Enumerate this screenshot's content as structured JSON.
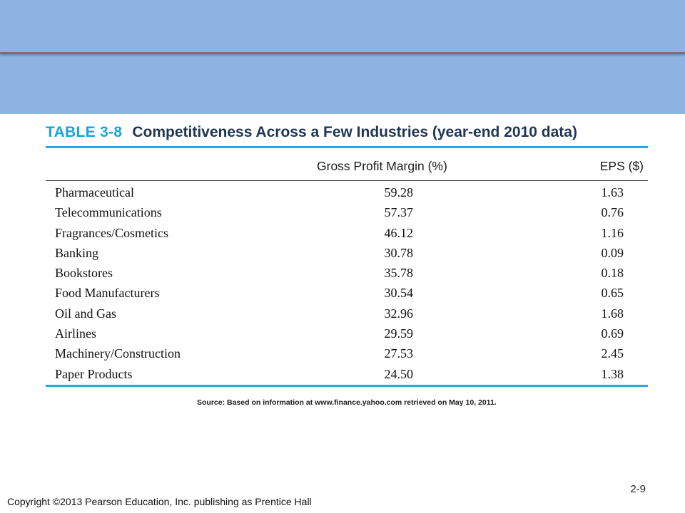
{
  "slide": {
    "background_color": "#ffffff",
    "banner_color": "#8db3e2",
    "banner_rule_color": "#8b6574"
  },
  "table": {
    "number": "TABLE 3-8",
    "title": "Competitiveness Across a Few Industries (year-end 2010 data)",
    "headers": {
      "industry": "",
      "gross_profit_margin": "Gross Profit Margin (%)",
      "eps": "EPS ($)"
    },
    "rows": [
      {
        "industry": "Pharmaceutical",
        "gross_profit_margin": "59.28",
        "eps": "1.63"
      },
      {
        "industry": "Telecommunications",
        "gross_profit_margin": "57.37",
        "eps": "0.76"
      },
      {
        "industry": "Fragrances/Cosmetics",
        "gross_profit_margin": "46.12",
        "eps": "1.16"
      },
      {
        "industry": "Banking",
        "gross_profit_margin": "30.78",
        "eps": "0.09"
      },
      {
        "industry": "Bookstores",
        "gross_profit_margin": "35.78",
        "eps": "0.18"
      },
      {
        "industry": "Food Manufacturers",
        "gross_profit_margin": "30.54",
        "eps": "0.65"
      },
      {
        "industry": "Oil and Gas",
        "gross_profit_margin": "32.96",
        "eps": "1.68"
      },
      {
        "industry": "Airlines",
        "gross_profit_margin": "29.59",
        "eps": "0.69"
      },
      {
        "industry": "Machinery/Construction",
        "gross_profit_margin": "27.53",
        "eps": "2.45"
      },
      {
        "industry": "Paper Products",
        "gross_profit_margin": "24.50",
        "eps": "1.38"
      }
    ],
    "source": "Source: Based on information at www.finance.yahoo.com retrieved on May 10, 2011.",
    "accent_color": "#2ca7df",
    "title_color": "#1f3552",
    "number_color": "#1aa3d8"
  },
  "footer": {
    "page_number": "2-9",
    "copyright": "Copyright ©2013 Pearson Education, Inc. publishing as Prentice Hall"
  }
}
